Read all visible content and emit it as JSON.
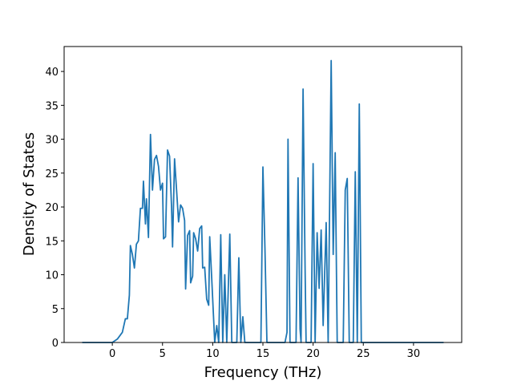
{
  "chart_data": {
    "type": "line",
    "xlabel": "Frequency (THz)",
    "ylabel": "Density of States",
    "color": "#1f77b4",
    "x": [
      -3,
      0,
      0.5,
      1,
      1.3,
      1.5,
      1.7,
      1.8,
      2,
      2.2,
      2.4,
      2.6,
      2.8,
      3.0,
      3.1,
      3.3,
      3.4,
      3.6,
      3.8,
      4.0,
      4.2,
      4.4,
      4.6,
      4.8,
      5.0,
      5.1,
      5.3,
      5.5,
      5.7,
      5.9,
      6.0,
      6.2,
      6.4,
      6.6,
      6.8,
      7.0,
      7.2,
      7.3,
      7.5,
      7.7,
      7.8,
      8.0,
      8.1,
      8.3,
      8.5,
      8.7,
      8.9,
      9.0,
      9.2,
      9.4,
      9.6,
      9.7,
      9.9,
      10.2,
      10.4,
      10.6,
      10.8,
      11.0,
      11.2,
      11.4,
      11.7,
      11.9,
      12.4,
      12.6,
      12.8,
      13.0,
      13.2,
      14.8,
      15.0,
      15.2,
      15.4,
      17.2,
      17.4,
      17.5,
      17.7,
      18.3,
      18.5,
      18.7,
      18.8,
      19.0,
      19.2,
      19.3,
      19.8,
      20.0,
      20.2,
      20.4,
      20.6,
      20.8,
      21.0,
      21.3,
      21.5,
      21.8,
      22.0,
      22.2,
      22.4,
      23.0,
      23.2,
      23.4,
      23.6,
      24.0,
      24.2,
      24.4,
      24.6,
      24.8,
      33
    ],
    "values": [
      0,
      0,
      0.5,
      1.5,
      3.5,
      3.5,
      7,
      14.3,
      13,
      11,
      14.5,
      15,
      19.8,
      19.8,
      23.8,
      17.5,
      21.2,
      15.5,
      30.7,
      22.5,
      27,
      27.6,
      26,
      22.5,
      23.5,
      15.3,
      15.6,
      28.4,
      27.5,
      20,
      14.1,
      27.1,
      22.5,
      17.8,
      20.3,
      19.8,
      18,
      7.9,
      15.8,
      16.5,
      8.8,
      9.8,
      16.2,
      15.3,
      13.5,
      16.8,
      17.2,
      11,
      11.1,
      6.4,
      5.5,
      15.6,
      9.5,
      0,
      2.5,
      0,
      15.9,
      0,
      10,
      0,
      16,
      0,
      0,
      12.5,
      0,
      3.8,
      0,
      0,
      25.9,
      14,
      0,
      0,
      1.5,
      30,
      0,
      0,
      24.3,
      2,
      0,
      37.4,
      11,
      0,
      0,
      26.4,
      0,
      16.2,
      8,
      16.6,
      2.5,
      17.7,
      0,
      41.6,
      13,
      28,
      0,
      0,
      22.5,
      24.2,
      0,
      0,
      25.2,
      0,
      35.2,
      0,
      0
    ],
    "xlim": [
      -4.8,
      34.8
    ],
    "xticks": [
      0,
      5,
      10,
      15,
      20,
      25,
      30
    ],
    "ylim": [
      0,
      43.68
    ],
    "yticks": [
      0,
      5,
      10,
      15,
      20,
      25,
      30,
      35,
      40
    ]
  }
}
